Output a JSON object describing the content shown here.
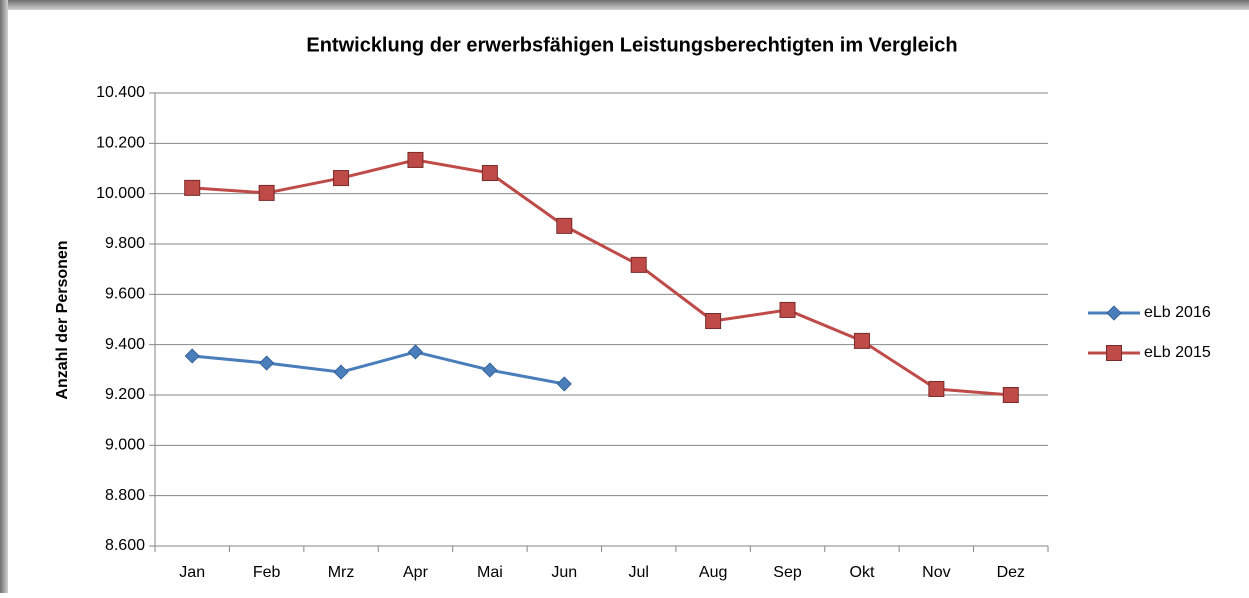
{
  "chart_data": {
    "type": "line",
    "title": "Entwicklung der erwerbsfähigen Leistungsberechtigten im Vergleich",
    "y_label": "Anzahl der Personen",
    "categories": [
      "Jan",
      "Feb",
      "Mrz",
      "Apr",
      "Mai",
      "Jun",
      "Jul",
      "Aug",
      "Sep",
      "Okt",
      "Nov",
      "Dez"
    ],
    "series": [
      {
        "name": "eLb 2016",
        "color": "#4a7ebb",
        "marker": "diamond",
        "values": [
          9355,
          9327,
          9291,
          9371,
          9299,
          9244,
          null,
          null,
          null,
          null,
          null,
          null
        ]
      },
      {
        "name": "eLb 2015",
        "color": "#be4b48",
        "marker": "square",
        "values": [
          10023,
          10003,
          10062,
          10134,
          10082,
          9872,
          9717,
          9494,
          9538,
          9415,
          9224,
          9200
        ]
      }
    ],
    "ylim": [
      8600,
      10400
    ],
    "yticks": [
      {
        "value": 8600,
        "label": "8.600"
      },
      {
        "value": 8800,
        "label": "8.800"
      },
      {
        "value": 9000,
        "label": "9.000"
      },
      {
        "value": 9200,
        "label": "9.200"
      },
      {
        "value": 9400,
        "label": "9.400"
      },
      {
        "value": 9600,
        "label": "9.600"
      },
      {
        "value": 9800,
        "label": "9.800"
      },
      {
        "value": 10000,
        "label": "10.000"
      },
      {
        "value": 10200,
        "label": "10.200"
      },
      {
        "value": 10400,
        "label": "10.400"
      }
    ],
    "grid": true,
    "legend": "right"
  }
}
